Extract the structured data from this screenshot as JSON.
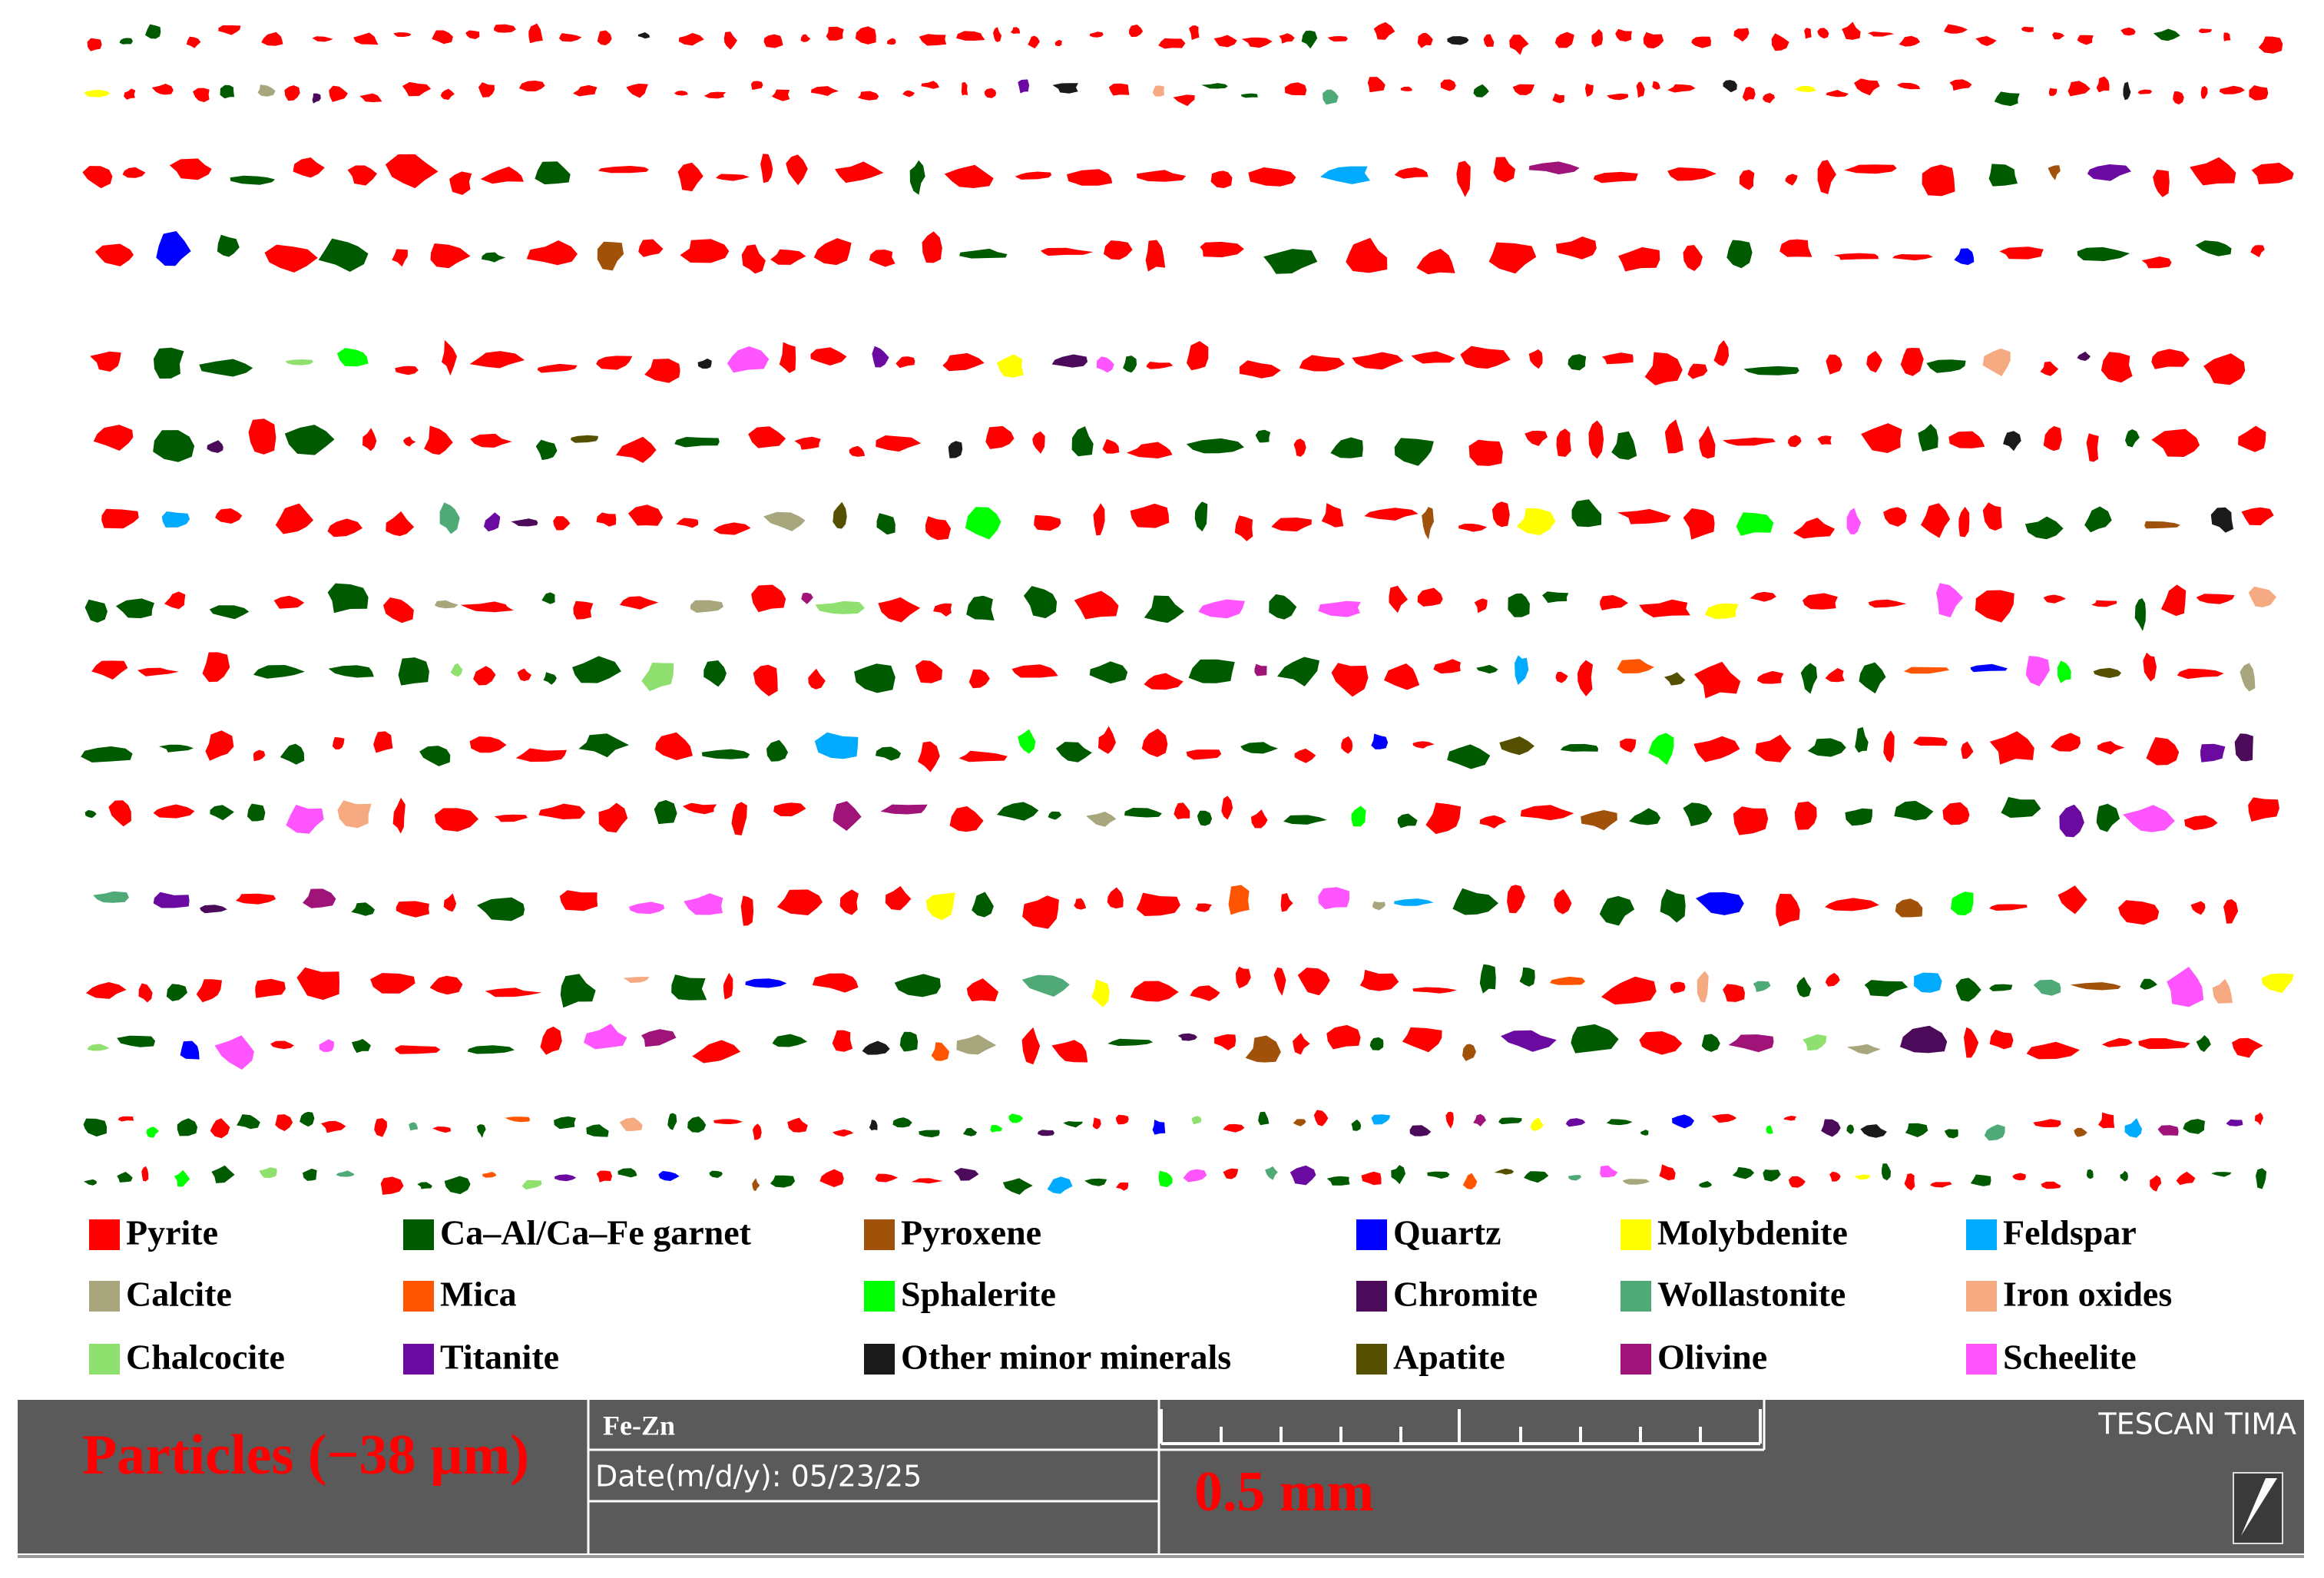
{
  "legend": {
    "items": [
      {
        "label": "Pyrite",
        "color": "#ff0000"
      },
      {
        "label": "Ca–Al/Ca–Fe garnet",
        "color": "#005a00"
      },
      {
        "label": "Pyroxene",
        "color": "#a0520a"
      },
      {
        "label": "Quartz",
        "color": "#0000ff"
      },
      {
        "label": "Molybdenite",
        "color": "#ffff00"
      },
      {
        "label": "Feldspar",
        "color": "#00aaff"
      },
      {
        "label": "Calcite",
        "color": "#a8a67c"
      },
      {
        "label": "Mica",
        "color": "#ff5500"
      },
      {
        "label": "Sphalerite",
        "color": "#00ff00"
      },
      {
        "label": "Chromite",
        "color": "#4b0a5a"
      },
      {
        "label": "Wollastonite",
        "color": "#50aa78"
      },
      {
        "label": "Iron oxides",
        "color": "#f5aa82"
      },
      {
        "label": "Chalcocite",
        "color": "#90e070"
      },
      {
        "label": "Titanite",
        "color": "#6a0aa0"
      },
      {
        "label": "Other minor minerals",
        "color": "#1a1a1a"
      },
      {
        "label": "Apatite",
        "color": "#555000"
      },
      {
        "label": "Olivine",
        "color": "#a0147a"
      },
      {
        "label": "Scheelite",
        "color": "#ff55ff"
      }
    ]
  },
  "footer": {
    "sample": "Particles (−38 µm)",
    "name": "Fe-Zn",
    "date": "Date(m/d/y): 05/23/25",
    "scale": "0.5 mm",
    "brand": "TESCAN TIMA"
  }
}
